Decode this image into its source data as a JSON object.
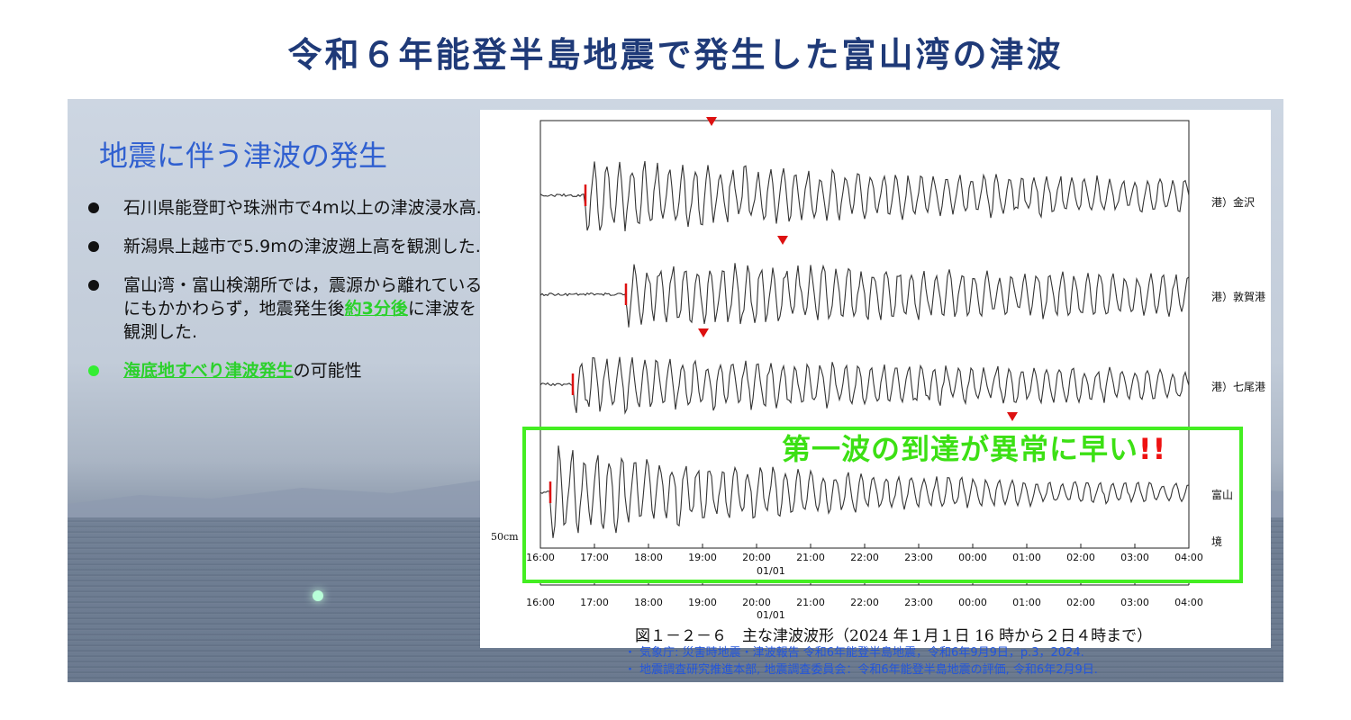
{
  "title": "令和６年能登半島地震で発生した富山湾の津波",
  "subtitle": "地震に伴う津波の発生",
  "bullets": {
    "b1": "石川県能登町や珠洲市で4m以上の津波浸水高.",
    "b2": "新潟県上越市で5.9mの津波遡上高を観測した.",
    "b3_pre": "富山湾・富山検潮所では，震源から離れているにもかかわらず，地震発生後",
    "b3_hl": "約3分後",
    "b3_post": "に津波を観測した.",
    "b4_hl": "海底地すべり津波発生",
    "b4_post": "の可能性"
  },
  "alert": {
    "text": "第一波の到達が異常に早い",
    "mark": "!!"
  },
  "figure": {
    "stations": [
      "港）金沢",
      "港）敦賀港",
      "港）七尾港",
      "富山",
      "境"
    ],
    "scale_label": "50cm",
    "x_ticks": [
      "16:00",
      "17:00",
      "18:00",
      "19:00",
      "20:00",
      "21:00",
      "22:00",
      "23:00",
      "00:00",
      "01:00",
      "02:00",
      "03:00",
      "04:00"
    ],
    "date_label": "01/01",
    "caption": "図１－２－６　主な津波波形（2024 年１月１日 16 時から２日４時まで）"
  },
  "references": [
    "・ 気象庁: 災害時地震・津波報告 令和6年能登半島地震，令和6年9月9日，p.3，2024.",
    "・ 地震調査研究推進本部, 地震調査委員会：令和6年能登半島地震の評価, 令和6年2月9日."
  ],
  "colors": {
    "title": "#1f3a78",
    "subtitle": "#3060d0",
    "highlight": "#2bd12b",
    "box": "#44ee22",
    "marker": "#dd1111",
    "refs": "#2255dd"
  }
}
